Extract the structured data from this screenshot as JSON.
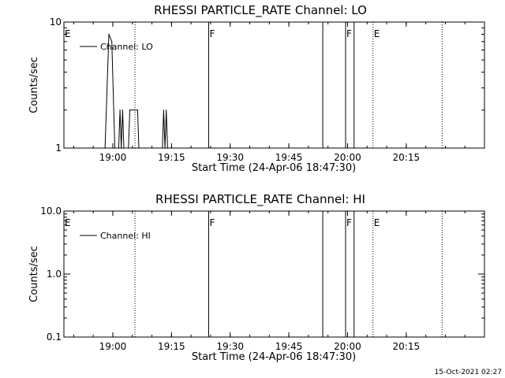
{
  "timestamp": "15-Oct-2021 02:27",
  "colors": {
    "background": "#ffffff",
    "foreground": "#000000"
  },
  "chart_data": [
    {
      "type": "line",
      "title": "RHESSI PARTICLE_RATE Channel: LO",
      "xlabel": "Start Time (24-Apr-06 18:47:30)",
      "ylabel": "Counts/sec",
      "xlim": [
        "18:47:30",
        "20:35:00"
      ],
      "ylim": [
        1,
        10
      ],
      "yscale": "log",
      "xticks": [
        "19:00",
        "19:15",
        "19:30",
        "19:45",
        "20:00",
        "20:15"
      ],
      "yticks": [
        "1",
        "10"
      ],
      "legend": {
        "placement": "top-left",
        "entries": [
          "Channel: LO"
        ]
      },
      "series": [
        {
          "name": "Channel: LO",
          "points": [
            [
              "18:58:00",
              1
            ],
            [
              "18:59:00",
              8
            ],
            [
              "18:59:45",
              7
            ],
            [
              "19:00:30",
              1
            ],
            [
              "19:01:30",
              1
            ],
            [
              "19:01:50",
              2
            ],
            [
              "19:02:10",
              1
            ],
            [
              "19:02:30",
              2
            ],
            [
              "19:02:50",
              1
            ],
            [
              "19:04:00",
              1
            ],
            [
              "19:04:20",
              2
            ],
            [
              "19:06:20",
              2
            ],
            [
              "19:06:40",
              1
            ],
            [
              "19:12:40",
              1
            ],
            [
              "19:13:00",
              2
            ],
            [
              "19:13:20",
              1
            ],
            [
              "19:13:40",
              2
            ],
            [
              "19:14:00",
              1
            ]
          ]
        }
      ],
      "markers": [
        {
          "label": "E",
          "time": "18:47:30",
          "style": "solid"
        },
        {
          "label": "",
          "time": "19:05:40",
          "style": "dotted"
        },
        {
          "label": "F",
          "time": "19:24:30",
          "style": "solid"
        },
        {
          "label": "",
          "time": "19:53:40",
          "style": "solid"
        },
        {
          "label": "F",
          "time": "19:59:30",
          "style": "solid"
        },
        {
          "label": "",
          "time": "20:01:40",
          "style": "solid"
        },
        {
          "label": "E",
          "time": "20:06:30",
          "style": "dotted"
        },
        {
          "label": "",
          "time": "20:24:10",
          "style": "dotted"
        }
      ]
    },
    {
      "type": "line",
      "title": "RHESSI PARTICLE_RATE Channel: HI",
      "xlabel": "Start Time (24-Apr-06 18:47:30)",
      "ylabel": "Counts/sec",
      "xlim": [
        "18:47:30",
        "20:35:00"
      ],
      "ylim": [
        0.1,
        10
      ],
      "yscale": "log",
      "xticks": [
        "19:00",
        "19:15",
        "19:30",
        "19:45",
        "20:00",
        "20:15"
      ],
      "yticks": [
        "0.1",
        "1.0",
        "10.0"
      ],
      "legend": {
        "placement": "top-left",
        "entries": [
          "Channel: HI"
        ]
      },
      "series": [
        {
          "name": "Channel: HI",
          "points": []
        }
      ],
      "markers": [
        {
          "label": "E",
          "time": "18:47:30",
          "style": "solid"
        },
        {
          "label": "",
          "time": "19:05:40",
          "style": "dotted"
        },
        {
          "label": "F",
          "time": "19:24:30",
          "style": "solid"
        },
        {
          "label": "",
          "time": "19:53:40",
          "style": "solid"
        },
        {
          "label": "F",
          "time": "19:59:30",
          "style": "solid"
        },
        {
          "label": "",
          "time": "20:01:40",
          "style": "solid"
        },
        {
          "label": "E",
          "time": "20:06:30",
          "style": "dotted"
        },
        {
          "label": "",
          "time": "20:24:10",
          "style": "dotted"
        }
      ]
    }
  ]
}
